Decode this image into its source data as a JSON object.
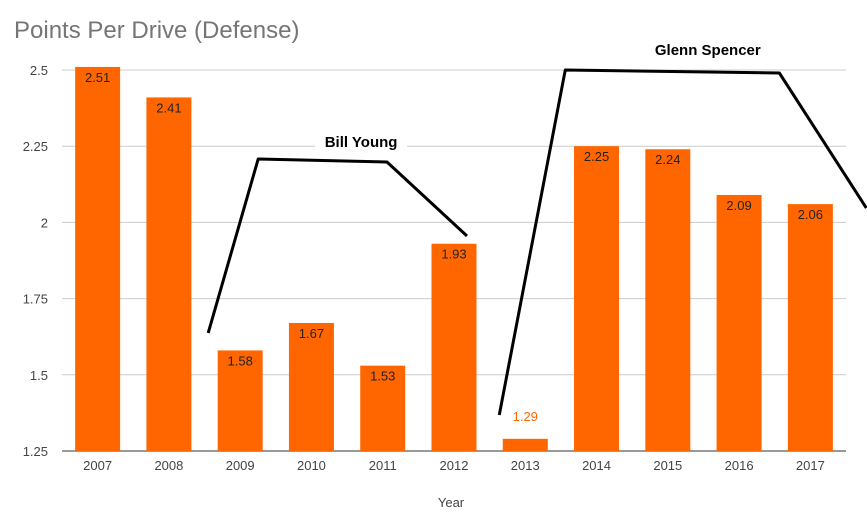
{
  "chart_data": {
    "type": "bar",
    "title": "Points Per Drive (Defense)",
    "xlabel": "Year",
    "ylabel": "",
    "ylim": [
      1.25,
      2.5
    ],
    "yticks": [
      "1.25",
      "1.5",
      "1.75",
      "2",
      "2.25",
      "2.5"
    ],
    "ytick_values": [
      1.25,
      1.5,
      1.75,
      2,
      2.25,
      2.5
    ],
    "categories": [
      "2007",
      "2008",
      "2009",
      "2010",
      "2011",
      "2012",
      "2013",
      "2014",
      "2015",
      "2016",
      "2017"
    ],
    "values": [
      2.51,
      2.41,
      1.58,
      1.67,
      1.53,
      1.93,
      1.29,
      2.25,
      2.24,
      2.09,
      2.06
    ],
    "value_labels": [
      "2.51",
      "2.41",
      "1.58",
      "1.67",
      "1.53",
      "1.93",
      "1.29",
      "2.25",
      "2.24",
      "2.09",
      "2.06"
    ],
    "bar_color": "#FF6600",
    "grid": true,
    "annotations": [
      {
        "text": "Bill Young",
        "from": "2009",
        "to": "2012"
      },
      {
        "text": "Glenn Spencer",
        "from": "2013",
        "to": "2017"
      }
    ]
  }
}
